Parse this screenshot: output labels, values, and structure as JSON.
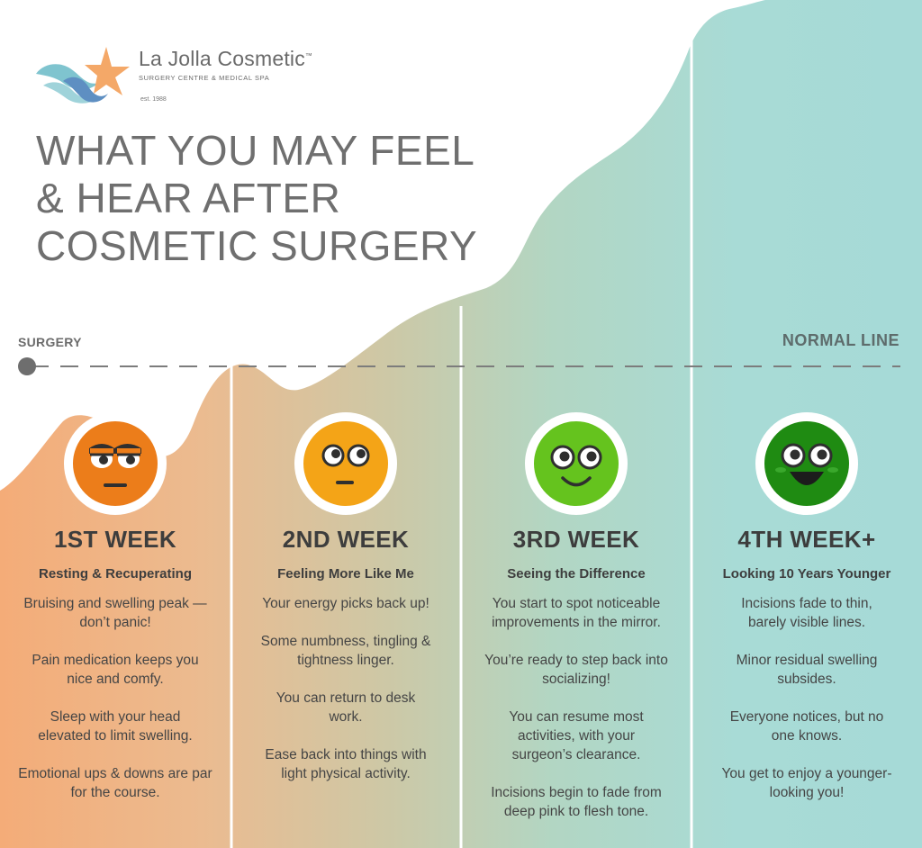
{
  "brand": {
    "name": "La Jolla Cosmetic",
    "tm": "™",
    "subtitle": "SURGERY CENTRE & MEDICAL SPA",
    "est": "est. 1988"
  },
  "headline": [
    "WHAT YOU MAY FEEL",
    "& HEAR AFTER",
    "COSMETIC SURGERY"
  ],
  "timeline": {
    "start_label": "SURGERY",
    "end_label": "NORMAL LINE"
  },
  "colors": {
    "orange": "#ef7f1a",
    "amber": "#f5a515",
    "light_green": "#66c41e",
    "dark_green": "#1f8c12",
    "teal": "#a8dcd8",
    "peach": "#f2ae7c"
  },
  "weeks": [
    {
      "title": "1ST WEEK",
      "subtitle": "Resting & Recuperating",
      "face_icon": "grumpy-face-icon",
      "items": [
        "Bruising and swelling peak —don’t panic!",
        "Pain medication keeps you nice and comfy.",
        "Sleep with your head elevated to limit swelling.",
        "Emotional ups & downs are par for the course."
      ]
    },
    {
      "title": "2ND WEEK",
      "subtitle": "Feeling More Like Me",
      "face_icon": "neutral-face-icon",
      "items": [
        "Your energy picks back up!",
        "Some numbness, tingling & tightness linger.",
        "You can return to desk work.",
        "Ease back into things with light physical activity."
      ]
    },
    {
      "title": "3RD WEEK",
      "subtitle": "Seeing the Difference",
      "face_icon": "smiling-face-icon",
      "items": [
        "You start to spot noticeable improvements in the mirror.",
        "You’re ready to step back into socializing!",
        "You can resume most activities, with your surgeon’s clearance.",
        "Incisions begin to fade from deep pink to flesh tone."
      ]
    },
    {
      "title": "4TH WEEK+",
      "subtitle": "Looking 10 Years Younger",
      "face_icon": "grinning-face-icon",
      "items": [
        "Incisions fade to thin, barely visible lines.",
        "Minor residual swelling subsides.",
        "Everyone notices, but no one knows.",
        "You get to enjoy a younger-looking you!"
      ]
    }
  ]
}
